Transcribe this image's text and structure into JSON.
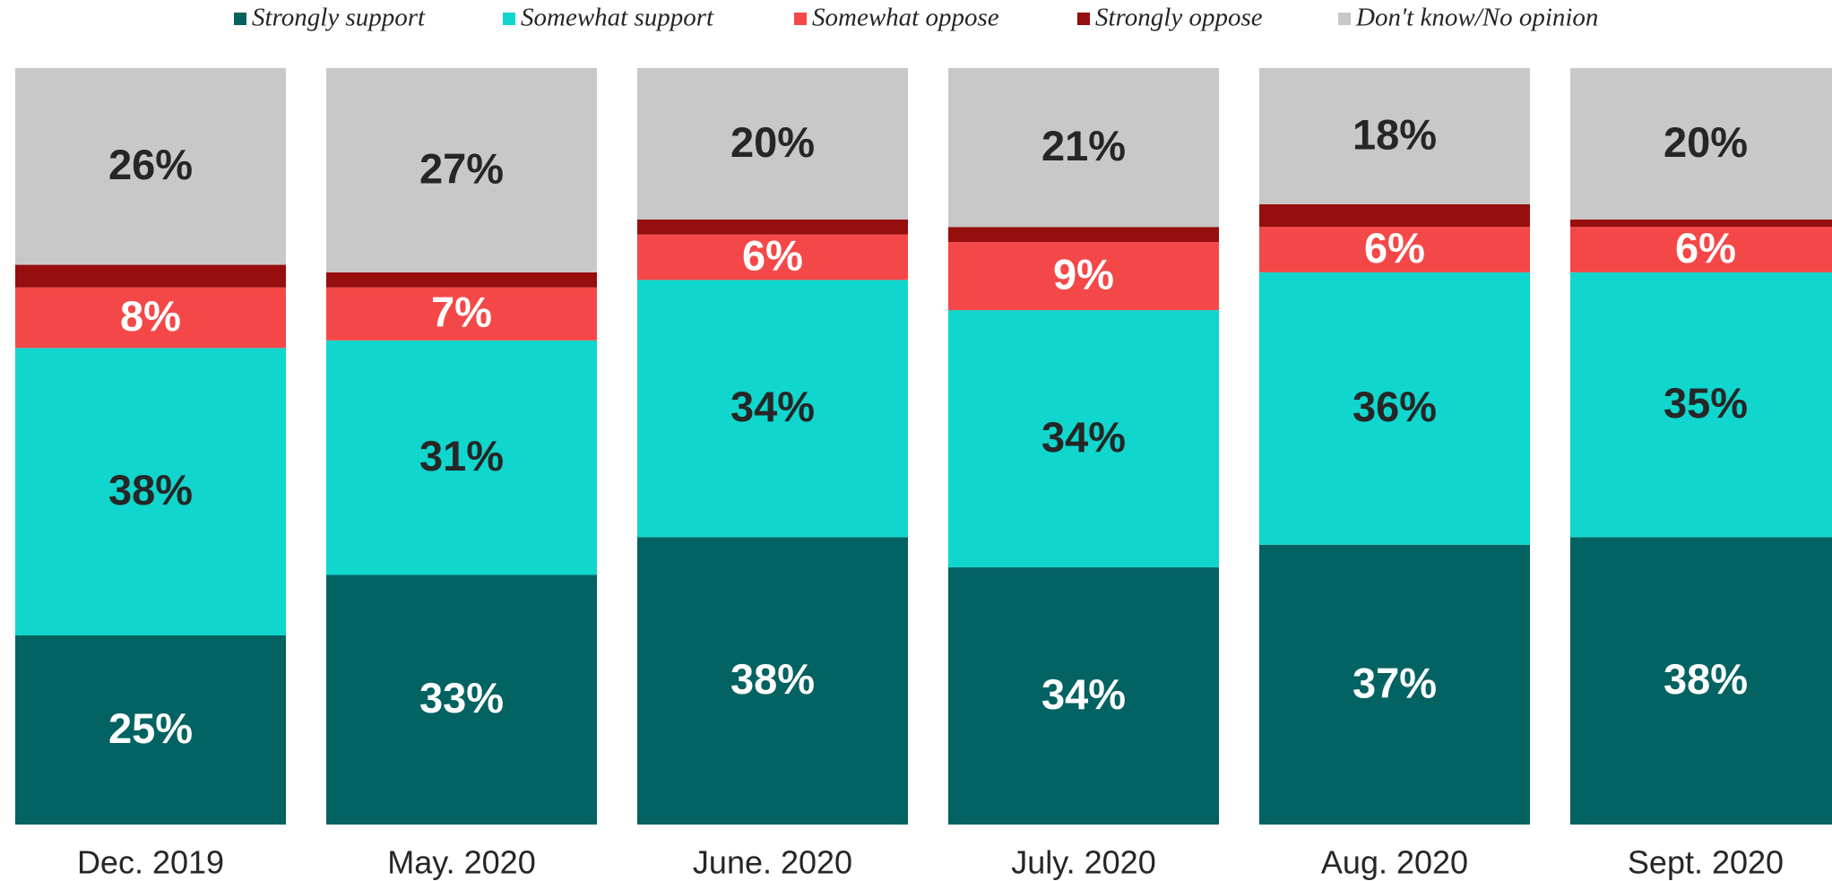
{
  "chart_data": {
    "type": "stacked_bar",
    "categories": [
      "Dec. 2019",
      "May. 2020",
      "June. 2020",
      "July. 2020",
      "Aug. 2020",
      "Sept. 2020"
    ],
    "ylim": [
      0,
      100
    ],
    "series": [
      {
        "name": "Strongly support",
        "color": "#036262",
        "label_color": "#ffffff",
        "values": [
          25,
          33,
          38,
          34,
          37,
          38
        ],
        "value_labels": [
          "25%",
          "33%",
          "38%",
          "34%",
          "37%",
          "38%"
        ]
      },
      {
        "name": "Somewhat support",
        "color": "#10d6cd",
        "label_color": "#262626",
        "values": [
          38,
          31,
          34,
          34,
          36,
          35
        ],
        "value_labels": [
          "38%",
          "31%",
          "34%",
          "34%",
          "36%",
          "35%"
        ]
      },
      {
        "name": "Somewhat oppose",
        "color": "#f44848",
        "label_color": "#ffffff",
        "values": [
          8,
          7,
          6,
          9,
          6,
          6
        ],
        "value_labels": [
          "8%",
          "7%",
          "6%",
          "9%",
          "6%",
          "6%"
        ]
      },
      {
        "name": "Strongly oppose",
        "color": "#960e0e",
        "values": [
          3,
          2,
          2,
          2,
          3,
          1
        ]
      },
      {
        "name": "Don't know/No opinion",
        "color": "#c8c8c8",
        "label_color": "#262626",
        "values": [
          26,
          27,
          20,
          21,
          18,
          20
        ],
        "value_labels": [
          "26%",
          "27%",
          "20%",
          "21%",
          "18%",
          "20%"
        ]
      }
    ]
  }
}
